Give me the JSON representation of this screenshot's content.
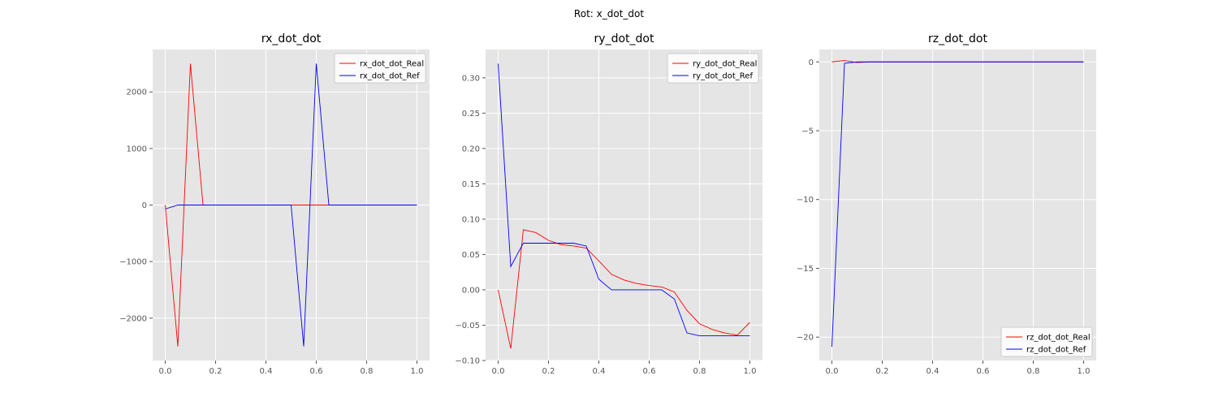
{
  "suptitle": "Rot: x_dot_dot",
  "colors": {
    "real": "#ff0000",
    "ref": "#0000ff",
    "axes_bg": "#e5e5e5",
    "grid": "#ffffff"
  },
  "chart_data": [
    {
      "type": "line",
      "title": "rx_dot_dot",
      "xlabel": "",
      "ylabel": "",
      "xlim": [
        -0.05,
        1.05
      ],
      "ylim": [
        -2750,
        2750
      ],
      "xticks": [
        0.0,
        0.2,
        0.4,
        0.6,
        0.8,
        1.0
      ],
      "xtick_labels": [
        "0.0",
        "0.2",
        "0.4",
        "0.6",
        "0.8",
        "1.0"
      ],
      "yticks": [
        -2000,
        -1000,
        0,
        1000,
        2000
      ],
      "ytick_labels": [
        "−2000",
        "−1000",
        "0",
        "1000",
        "2000"
      ],
      "grid": true,
      "legend_position": "top-right",
      "x": [
        0.0,
        0.05,
        0.1,
        0.15,
        0.2,
        0.25,
        0.3,
        0.35,
        0.4,
        0.45,
        0.5,
        0.55,
        0.6,
        0.65,
        0.7,
        0.75,
        0.8,
        0.85,
        0.9,
        0.95,
        1.0
      ],
      "series": [
        {
          "name": "rx_dot_dot_Real",
          "color": "#ff0000",
          "values": [
            0,
            -2500,
            2500,
            0,
            0,
            0,
            0,
            0,
            0,
            0,
            0,
            0,
            0,
            0,
            0,
            0,
            0,
            0,
            0,
            0,
            0
          ]
        },
        {
          "name": "rx_dot_dot_Ref",
          "color": "#0000ff",
          "values": [
            -70,
            0,
            0,
            0,
            0,
            0,
            0,
            0,
            0,
            0,
            0,
            -2500,
            2500,
            0,
            0,
            0,
            0,
            0,
            0,
            0,
            0
          ]
        }
      ]
    },
    {
      "type": "line",
      "title": "ry_dot_dot",
      "xlabel": "",
      "ylabel": "",
      "xlim": [
        -0.05,
        1.05
      ],
      "ylim": [
        -0.1,
        0.34
      ],
      "xticks": [
        0.0,
        0.2,
        0.4,
        0.6,
        0.8,
        1.0
      ],
      "xtick_labels": [
        "0.0",
        "0.2",
        "0.4",
        "0.6",
        "0.8",
        "1.0"
      ],
      "yticks": [
        -0.1,
        -0.05,
        0.0,
        0.05,
        0.1,
        0.15,
        0.2,
        0.25,
        0.3
      ],
      "ytick_labels": [
        "−0.10",
        "−0.05",
        "0.00",
        "0.05",
        "0.10",
        "0.15",
        "0.20",
        "0.25",
        "0.30"
      ],
      "grid": true,
      "legend_position": "top-right",
      "x": [
        0.0,
        0.05,
        0.1,
        0.15,
        0.2,
        0.25,
        0.3,
        0.35,
        0.4,
        0.45,
        0.5,
        0.55,
        0.6,
        0.65,
        0.7,
        0.75,
        0.8,
        0.85,
        0.9,
        0.95,
        1.0
      ],
      "series": [
        {
          "name": "ry_dot_dot_Real",
          "color": "#ff0000",
          "values": [
            0.0,
            -0.083,
            0.085,
            0.081,
            0.07,
            0.064,
            0.062,
            0.059,
            0.041,
            0.022,
            0.014,
            0.009,
            0.006,
            0.004,
            -0.003,
            -0.029,
            -0.048,
            -0.056,
            -0.061,
            -0.064,
            -0.046
          ]
        },
        {
          "name": "ry_dot_dot_Ref",
          "color": "#0000ff",
          "values": [
            0.32,
            0.033,
            0.066,
            0.066,
            0.066,
            0.066,
            0.066,
            0.062,
            0.015,
            0.0,
            0.0,
            0.0,
            0.0,
            0.0,
            -0.013,
            -0.061,
            -0.065,
            -0.065,
            -0.065,
            -0.065,
            -0.065
          ]
        }
      ]
    },
    {
      "type": "line",
      "title": "rz_dot_dot",
      "xlabel": "",
      "ylabel": "",
      "xlim": [
        -0.05,
        1.05
      ],
      "ylim": [
        -21.7,
        0.9
      ],
      "xticks": [
        0.0,
        0.2,
        0.4,
        0.6,
        0.8,
        1.0
      ],
      "xtick_labels": [
        "0.0",
        "0.2",
        "0.4",
        "0.6",
        "0.8",
        "1.0"
      ],
      "yticks": [
        -20,
        -15,
        -10,
        -5,
        0
      ],
      "ytick_labels": [
        "−20",
        "−15",
        "−10",
        "−5",
        "0"
      ],
      "grid": true,
      "legend_position": "bottom-right",
      "x": [
        0.0,
        0.05,
        0.1,
        0.15,
        0.2,
        0.25,
        0.3,
        0.35,
        0.4,
        0.45,
        0.5,
        0.55,
        0.6,
        0.65,
        0.7,
        0.75,
        0.8,
        0.85,
        0.9,
        0.95,
        1.0
      ],
      "series": [
        {
          "name": "rz_dot_dot_Real",
          "color": "#ff0000",
          "values": [
            0.0,
            0.1,
            -0.05,
            0,
            0,
            0,
            0,
            0,
            0,
            0,
            0,
            0,
            0,
            0,
            0,
            0,
            0,
            0,
            0,
            0,
            0
          ]
        },
        {
          "name": "rz_dot_dot_Ref",
          "color": "#0000ff",
          "values": [
            -20.7,
            -0.1,
            0,
            0,
            0,
            0,
            0,
            0,
            0,
            0,
            0,
            0,
            0,
            0,
            0,
            0,
            0,
            0,
            0,
            0,
            0
          ]
        }
      ]
    }
  ]
}
